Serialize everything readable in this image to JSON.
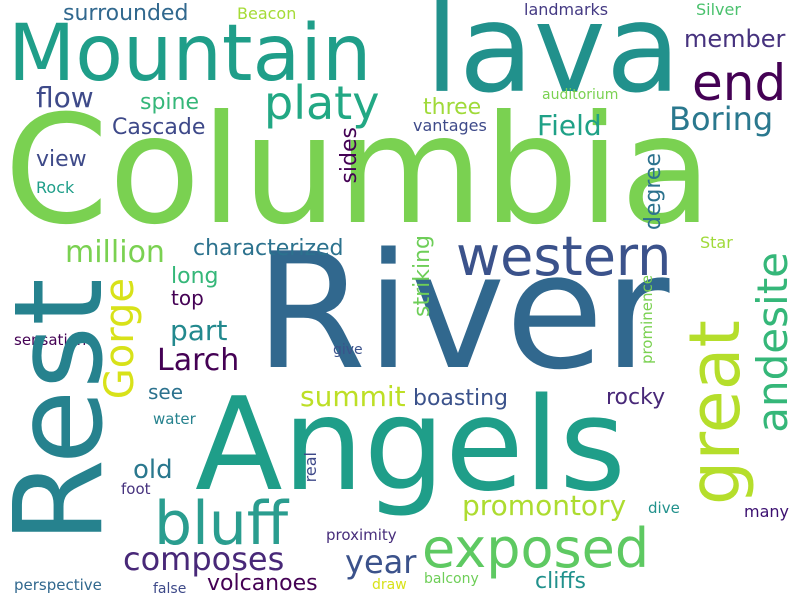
{
  "words": {
    "columbia": {
      "text": "Columbia",
      "color": "#7ad151"
    },
    "river": {
      "text": "River",
      "color": "#31688e"
    },
    "angels": {
      "text": "Angels",
      "color": "#1f9e89"
    },
    "rest": {
      "text": "Rest",
      "color": "#26828e"
    },
    "mountain": {
      "text": "Mountain",
      "color": "#1f9e89"
    },
    "lava": {
      "text": "lava",
      "color": "#21918c"
    },
    "end": {
      "text": "end",
      "color": "#440154"
    },
    "platy": {
      "text": "platy",
      "color": "#22a884"
    },
    "western": {
      "text": "western",
      "color": "#3b528b"
    },
    "exposed": {
      "text": "exposed",
      "color": "#5ec962"
    },
    "great": {
      "text": "great",
      "color": "#b5de2b"
    },
    "bluff": {
      "text": "bluff",
      "color": "#2a9d8f"
    },
    "andesite": {
      "text": "andesite",
      "color": "#35b779"
    },
    "gorge": {
      "text": "Gorge",
      "color": "#d8e219"
    },
    "composes": {
      "text": "composes",
      "color": "#482878"
    },
    "promontory": {
      "text": "promontory",
      "color": "#addc30"
    },
    "member": {
      "text": "member",
      "color": "#46327e"
    },
    "boring": {
      "text": "Boring",
      "color": "#2a788e"
    },
    "field": {
      "text": "Field",
      "color": "#1fa187"
    },
    "flow": {
      "text": "flow",
      "color": "#3e4a89"
    },
    "larch": {
      "text": "Larch",
      "color": "#440154"
    },
    "million": {
      "text": "million",
      "color": "#7ad151"
    },
    "characterized": {
      "text": "characterized",
      "color": "#2c728e"
    },
    "part": {
      "text": "part",
      "color": "#23898e"
    },
    "summit": {
      "text": "summit",
      "color": "#bddf26"
    },
    "year": {
      "text": "year",
      "color": "#3b528b"
    },
    "surrounded": {
      "text": "surrounded",
      "color": "#31688e"
    },
    "spine": {
      "text": "spine",
      "color": "#35b779"
    },
    "three": {
      "text": "three",
      "color": "#a0da39"
    },
    "cascade": {
      "text": "Cascade",
      "color": "#3e4989"
    },
    "view": {
      "text": "view",
      "color": "#3e4a89"
    },
    "sides": {
      "text": "sides",
      "color": "#440154"
    },
    "degree": {
      "text": "degree",
      "color": "#2c728e"
    },
    "striking": {
      "text": "striking",
      "color": "#6ece58"
    },
    "boasting": {
      "text": "boasting",
      "color": "#3b528b"
    },
    "rocky": {
      "text": "rocky",
      "color": "#482878"
    },
    "old": {
      "text": "old",
      "color": "#2a788e"
    },
    "volcanoes": {
      "text": "volcanoes",
      "color": "#440154"
    },
    "cliffs": {
      "text": "cliffs",
      "color": "#21918c"
    },
    "long": {
      "text": "long",
      "color": "#35b779"
    },
    "top": {
      "text": "top",
      "color": "#440154"
    },
    "see": {
      "text": "see",
      "color": "#2c728e"
    },
    "landmarks": {
      "text": "landmarks",
      "color": "#443a83"
    },
    "silver": {
      "text": "Silver",
      "color": "#4ac16d"
    },
    "beacon": {
      "text": "Beacon",
      "color": "#a5db36"
    },
    "auditorium": {
      "text": "auditorium",
      "color": "#7ad151"
    },
    "vantages": {
      "text": "vantages",
      "color": "#3e4a89"
    },
    "rock": {
      "text": "Rock",
      "color": "#1f9e89"
    },
    "star": {
      "text": "Star",
      "color": "#a0da39"
    },
    "prominence": {
      "text": "prominence",
      "color": "#7ad151"
    },
    "give": {
      "text": "give",
      "color": "#3b528b"
    },
    "sensation": {
      "text": "sensation",
      "color": "#440154"
    },
    "water": {
      "text": "water",
      "color": "#26828e"
    },
    "real": {
      "text": "real",
      "color": "#3e4989"
    },
    "foot": {
      "text": "foot",
      "color": "#46327e"
    },
    "proximity": {
      "text": "proximity",
      "color": "#472d7b"
    },
    "dive": {
      "text": "dive",
      "color": "#21918c"
    },
    "many": {
      "text": "many",
      "color": "#3b0f70"
    },
    "perspective": {
      "text": "perspective",
      "color": "#31688e"
    },
    "false": {
      "text": "false",
      "color": "#3e4a89"
    },
    "draw": {
      "text": "draw",
      "color": "#d8e219"
    },
    "balcony": {
      "text": "balcony",
      "color": "#6ece58"
    }
  }
}
